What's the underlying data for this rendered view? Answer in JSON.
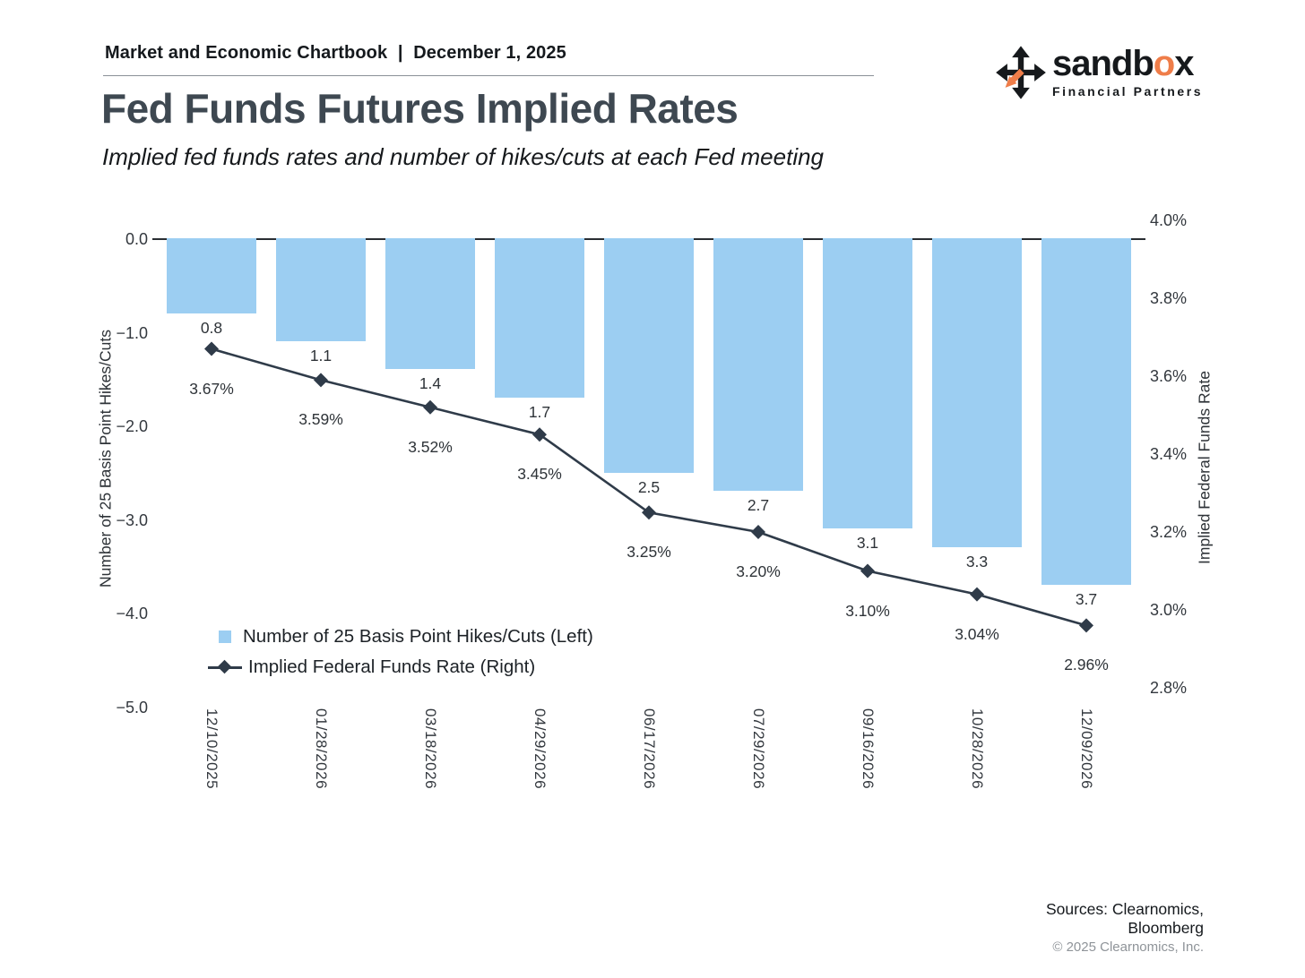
{
  "header": {
    "report_title": "Market and Economic Chartbook",
    "separator": "|",
    "report_date": "December 1, 2025",
    "title": "Fed Funds Futures Implied Rates",
    "subtitle": "Implied fed funds rates and number of hikes/cuts at each Fed meeting"
  },
  "logo": {
    "brand_pre": "sandb",
    "brand_highlight": "o",
    "brand_post": "x",
    "tagline": "Financial Partners",
    "accent_color": "#ef7d49",
    "icon_color": "#16191c"
  },
  "chart_data": {
    "type": "bar",
    "title": "Fed Funds Futures Implied Rates",
    "categories": [
      "12/10/2025",
      "01/28/2026",
      "03/18/2026",
      "04/29/2026",
      "06/17/2026",
      "07/29/2026",
      "09/16/2026",
      "10/28/2026",
      "12/09/2026"
    ],
    "series": [
      {
        "name": "Number of 25 Basis Point Hikes/Cuts (Left)",
        "type": "bar",
        "axis": "left",
        "values": [
          -0.8,
          -1.1,
          -1.4,
          -1.7,
          -2.5,
          -2.7,
          -3.1,
          -3.3,
          -3.7
        ],
        "labels": [
          "0.8",
          "1.1",
          "1.4",
          "1.7",
          "2.5",
          "2.7",
          "3.1",
          "3.3",
          "3.7"
        ],
        "color": "#9ccef2"
      },
      {
        "name": "Implied Federal Funds Rate (Right)",
        "type": "line",
        "axis": "right",
        "values": [
          3.67,
          3.59,
          3.52,
          3.45,
          3.25,
          3.2,
          3.1,
          3.04,
          2.96
        ],
        "labels": [
          "3.67%",
          "3.59%",
          "3.52%",
          "3.45%",
          "3.25%",
          "3.20%",
          "3.10%",
          "3.04%",
          "2.96%"
        ],
        "color": "#2f3b49",
        "marker": "diamond"
      }
    ],
    "left_axis": {
      "title": "Number of 25 Basis Point Hikes/Cuts",
      "range": [
        0,
        -5
      ],
      "tick_values": [
        0,
        -1,
        -2,
        -3,
        -4,
        -5
      ],
      "tick_labels": [
        "0.0",
        "−1.0",
        "−2.0",
        "−3.0",
        "−4.0",
        "−5.0"
      ]
    },
    "right_axis": {
      "title": "Implied Federal Funds Rate",
      "range": [
        4.0,
        2.8
      ],
      "tick_values": [
        4.0,
        3.8,
        3.6,
        3.4,
        3.2,
        3.0,
        2.8
      ],
      "tick_labels": [
        "4.0%",
        "3.8%",
        "3.6%",
        "3.4%",
        "3.2%",
        "3.0%",
        "2.8%"
      ]
    },
    "legend": [
      "Number of 25 Basis Point Hikes/Cuts (Left)",
      "Implied Federal Funds Rate (Right)"
    ],
    "legend_position": "inside-bottom-left",
    "grid": false
  },
  "footer": {
    "sources_line1": "Sources: Clearnomics,",
    "sources_line2": "Bloomberg",
    "copyright": "© 2025 Clearnomics, Inc."
  }
}
